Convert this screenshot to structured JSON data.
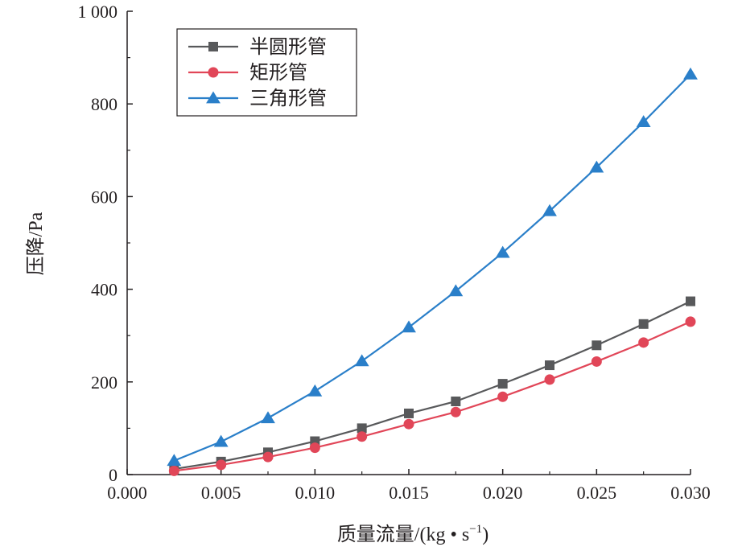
{
  "chart_data": {
    "type": "line",
    "xlabel": "质量流量/(kg • s",
    "xlabel_sup": "−1",
    "xlabel_close": ")",
    "ylabel": "压降/Pa",
    "xlim": [
      0.0,
      0.03
    ],
    "ylim": [
      0,
      1000
    ],
    "x_ticks": [
      0.0,
      0.005,
      0.01,
      0.015,
      0.02,
      0.025,
      0.03
    ],
    "x_tick_labels": [
      "0.000",
      "0.005",
      "0.010",
      "0.015",
      "0.020",
      "0.025",
      "0.030"
    ],
    "y_ticks": [
      0,
      200,
      400,
      600,
      800,
      1000
    ],
    "y_tick_labels": [
      "0",
      "200",
      "400",
      "600",
      "800",
      "1 000"
    ],
    "grid": false,
    "legend_position": "top-left",
    "x": [
      0.0025,
      0.005,
      0.0075,
      0.01,
      0.0125,
      0.015,
      0.0175,
      0.02,
      0.0225,
      0.025,
      0.0275,
      0.03
    ],
    "series": [
      {
        "name": "半圆形管",
        "color": "#58595b",
        "marker": "square",
        "values": [
          12,
          28,
          48,
          72,
          100,
          132,
          158,
          196,
          236,
          279,
          325,
          374
        ]
      },
      {
        "name": "矩形管",
        "color": "#e14658",
        "marker": "circle",
        "values": [
          8,
          21,
          38,
          58,
          82,
          109,
          135,
          168,
          205,
          244,
          285,
          330
        ]
      },
      {
        "name": "三角形管",
        "color": "#2a7fc9",
        "marker": "triangle",
        "values": [
          30,
          71,
          122,
          180,
          245,
          318,
          396,
          479,
          569,
          663,
          761,
          864
        ]
      }
    ]
  }
}
